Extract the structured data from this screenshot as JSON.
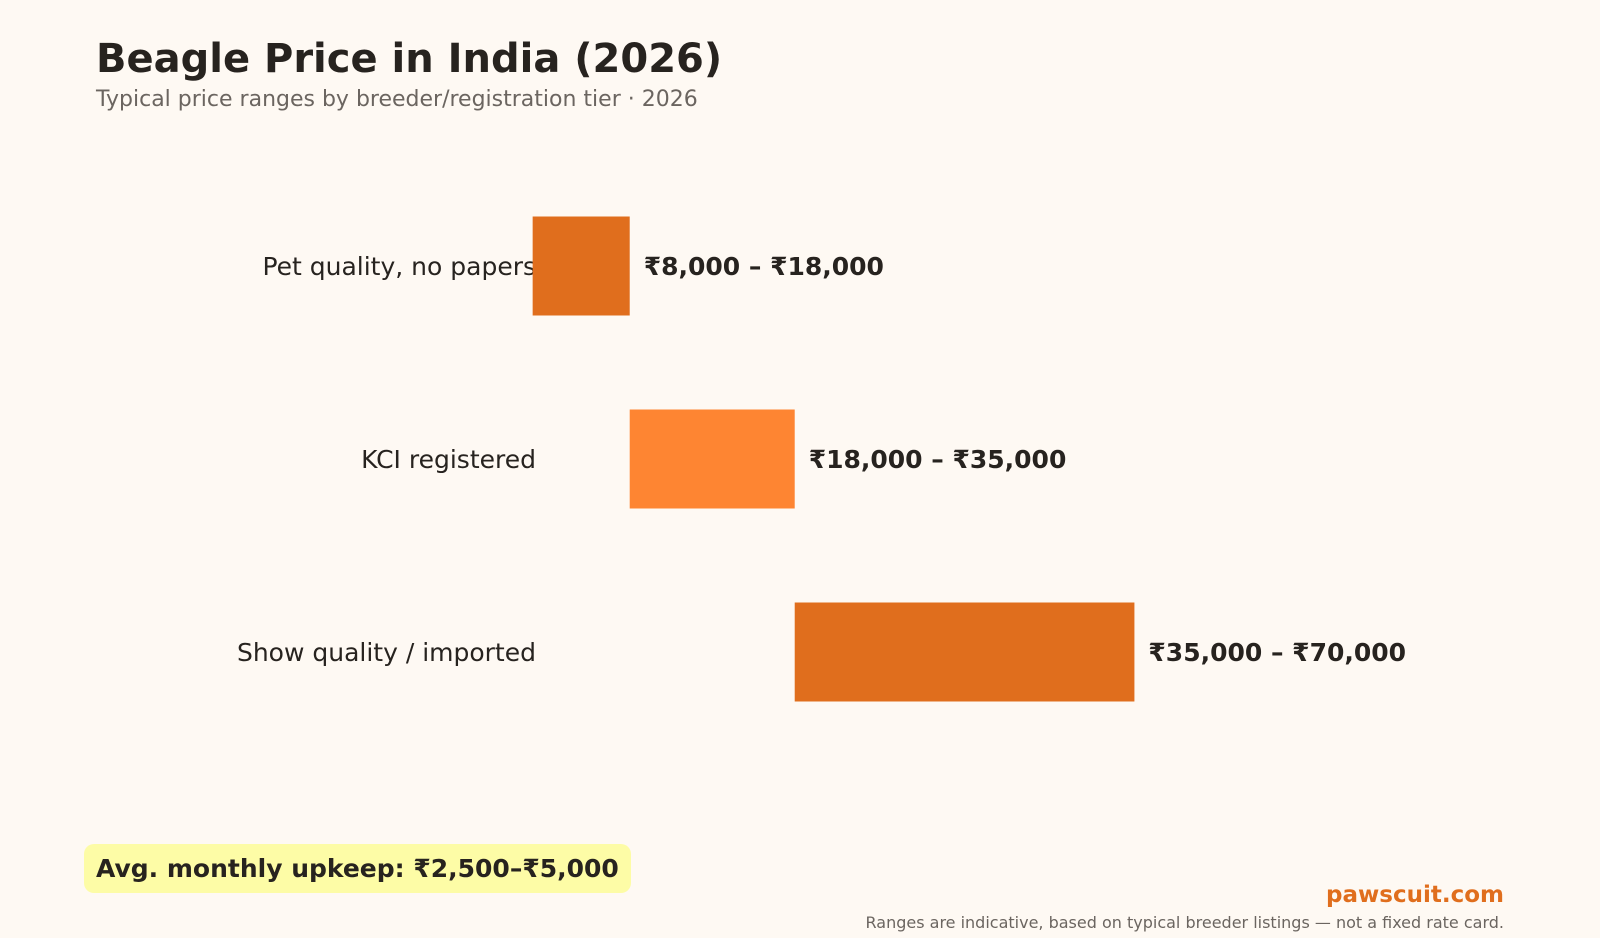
{
  "header": {
    "title": "Beagle Price in India (2026)",
    "subtitle": "Typical price ranges by breeder/registration tier · 2026"
  },
  "chart_data": {
    "type": "bar",
    "orientation": "horizontal-range",
    "title": "Beagle Price in India (2026)",
    "subtitle": "Typical price ranges by breeder/registration tier · 2026",
    "unit": "₹",
    "xlim": [
      0,
      70000
    ],
    "grid": false,
    "categories": [
      "Pet quality, no papers",
      "KCI registered",
      "Show quality / imported"
    ],
    "ranges": [
      {
        "low": 8000,
        "high": 18000,
        "label": "₹8,000 – ₹18,000",
        "color": "#e06e1d"
      },
      {
        "low": 18000,
        "high": 35000,
        "label": "₹18,000 – ₹35,000",
        "color": "#fe8532"
      },
      {
        "low": 35000,
        "high": 70000,
        "label": "₹35,000 – ₹70,000",
        "color": "#e06e1d"
      }
    ]
  },
  "callout": {
    "upkeep": "Avg. monthly upkeep: ₹2,500–₹5,000"
  },
  "footer": {
    "brand": "pawscuit.com",
    "note": "Ranges are indicative, based on typical breeder listings — not a fixed rate card."
  }
}
